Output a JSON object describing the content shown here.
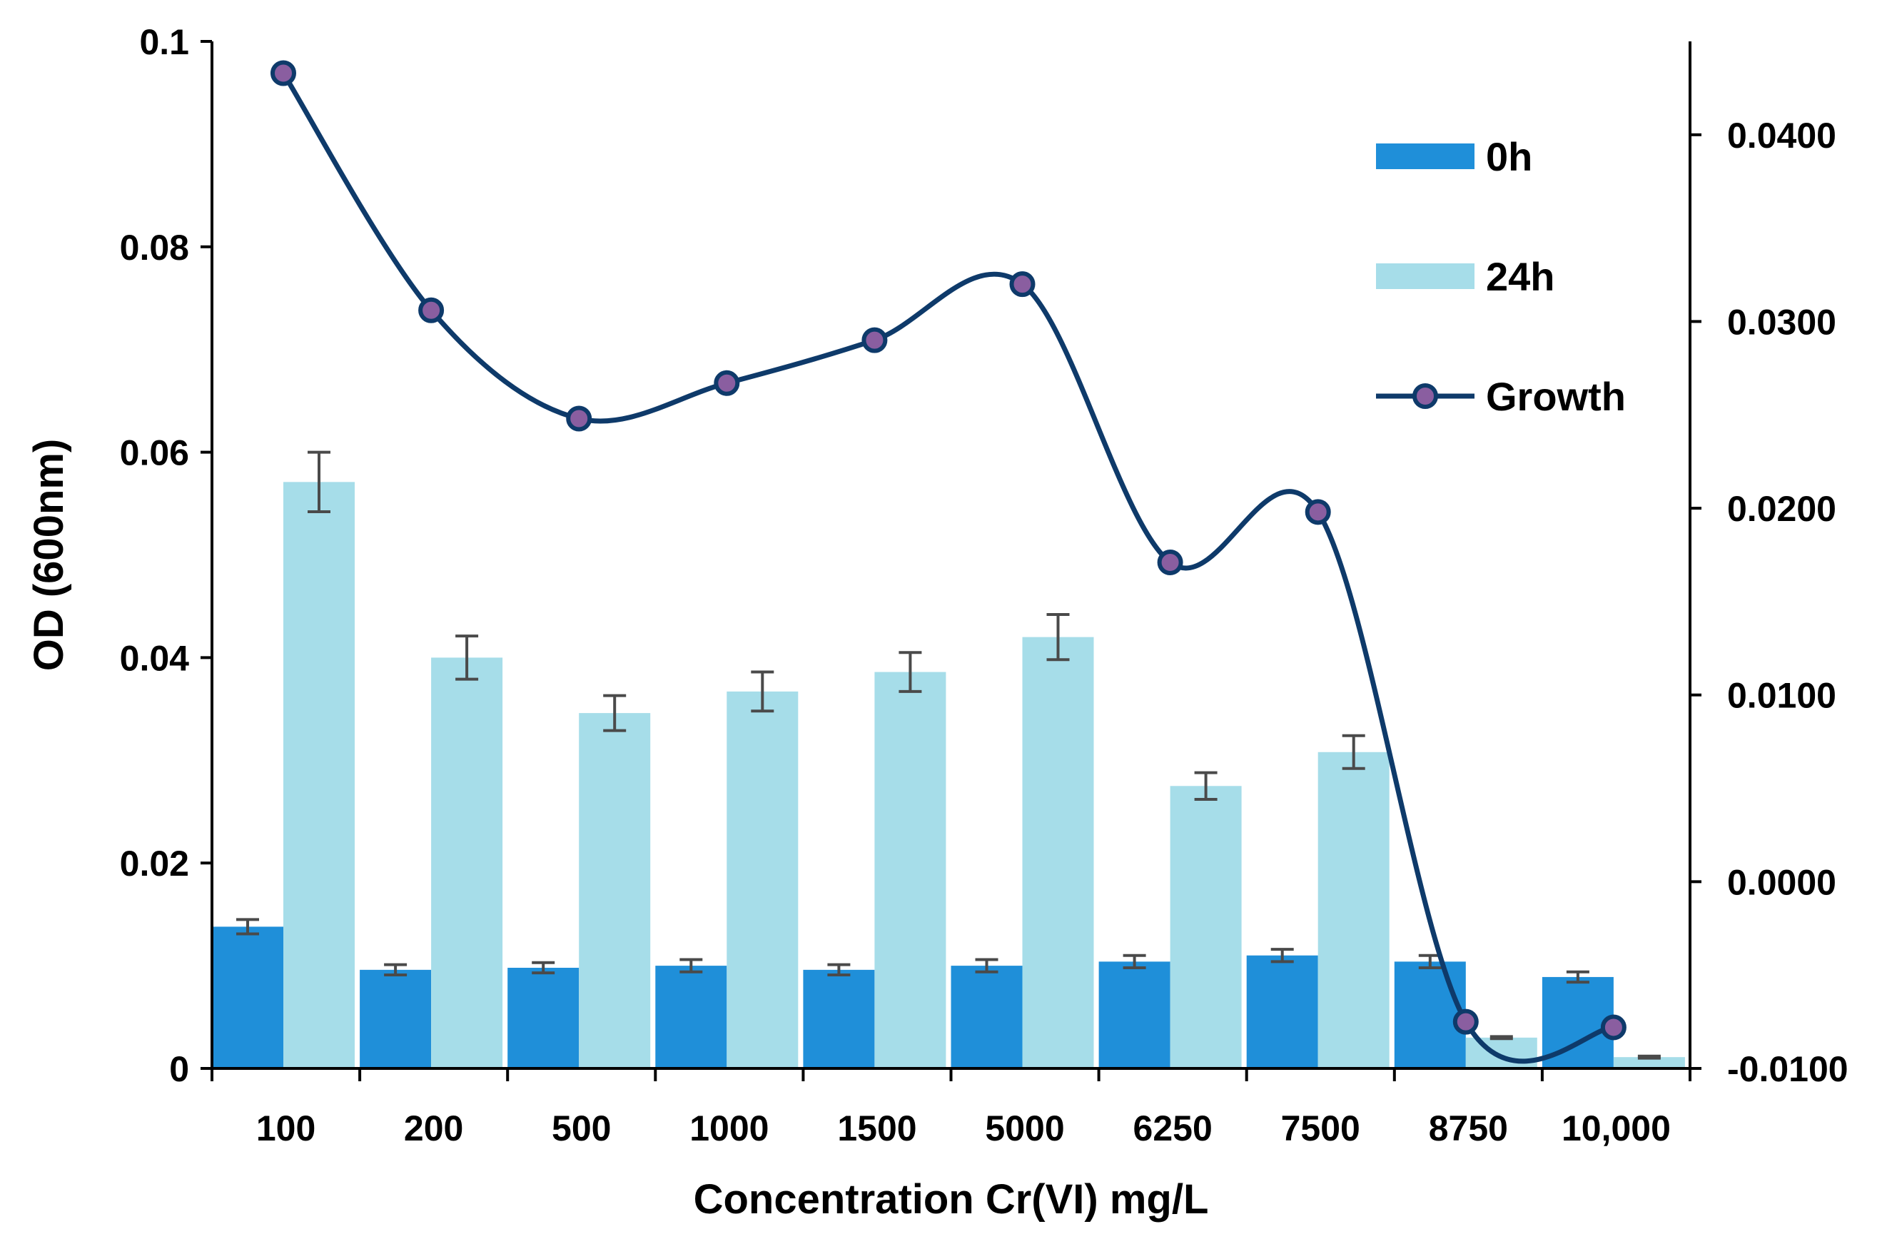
{
  "chart_data": {
    "type": "bar",
    "categories": [
      "100",
      "200",
      "500",
      "1000",
      "1500",
      "5000",
      "6250",
      "7500",
      "8750",
      "10,000"
    ],
    "xlabel": "Concentration Cr(VI) mg/L",
    "ylabel": "OD (600nm)",
    "ylim": [
      0,
      0.1
    ],
    "y_ticks": [
      "0",
      "0.02",
      "0.04",
      "0.06",
      "0.08",
      "0.1"
    ],
    "y2lim": [
      -0.01,
      0.045
    ],
    "y2_ticks": [
      "-0.0100",
      "0.0000",
      "0.0100",
      "0.0200",
      "0.0300",
      "0.0400"
    ],
    "series": [
      {
        "name": "0h",
        "kind": "bar",
        "color": "#1f8fd9",
        "values": [
          0.0138,
          0.0096,
          0.0098,
          0.01,
          0.0096,
          0.01,
          0.0104,
          0.011,
          0.0104,
          0.0089
        ],
        "errors": [
          0.0007,
          0.0005,
          0.0005,
          0.0006,
          0.0005,
          0.0006,
          0.0006,
          0.0006,
          0.0006,
          0.0005
        ]
      },
      {
        "name": "24h",
        "kind": "bar",
        "color": "#a6dde9",
        "values": [
          0.0571,
          0.04,
          0.0346,
          0.0367,
          0.0386,
          0.042,
          0.0275,
          0.0308,
          0.003,
          0.0011
        ],
        "errors": [
          0.0029,
          0.0021,
          0.0017,
          0.0019,
          0.0019,
          0.0022,
          0.0013,
          0.0016,
          0.0001,
          0.0001
        ]
      },
      {
        "name": "Growth",
        "kind": "line",
        "axis": "secondary",
        "color": "#0e3a6a",
        "marker_color": "#8a5ea0",
        "values": [
          0.0433,
          0.0306,
          0.0248,
          0.0267,
          0.029,
          0.032,
          0.0171,
          0.0198,
          -0.0075,
          -0.0078
        ]
      }
    ],
    "legend": [
      "0h",
      "24h",
      "Growth"
    ],
    "legend_position": "top-right"
  }
}
